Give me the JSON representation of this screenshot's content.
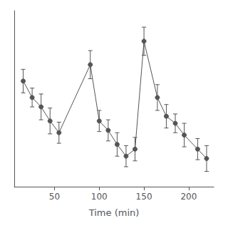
{
  "chart_data": {
    "type": "line",
    "xlabel": "Time (min)",
    "x": [
      15,
      25,
      35,
      45,
      55,
      90,
      100,
      110,
      120,
      130,
      140,
      150,
      165,
      175,
      185,
      195,
      210,
      220
    ],
    "values": [
      8.5,
      7.8,
      7.4,
      6.8,
      6.3,
      9.2,
      6.8,
      6.4,
      5.8,
      5.3,
      5.6,
      10.2,
      7.8,
      7.0,
      6.7,
      6.2,
      5.6,
      5.2
    ],
    "yerr": [
      0.5,
      0.4,
      0.55,
      0.55,
      0.45,
      0.6,
      0.45,
      0.45,
      0.5,
      0.45,
      0.5,
      0.6,
      0.55,
      0.5,
      0.4,
      0.5,
      0.45,
      0.55
    ],
    "color": "#555555",
    "marker": "circle",
    "xlim": [
      5,
      228
    ],
    "xticks": [
      50,
      100,
      150,
      200
    ],
    "ylim": [
      4.0,
      11.5
    ],
    "tick_labels": "x",
    "grid": false
  }
}
